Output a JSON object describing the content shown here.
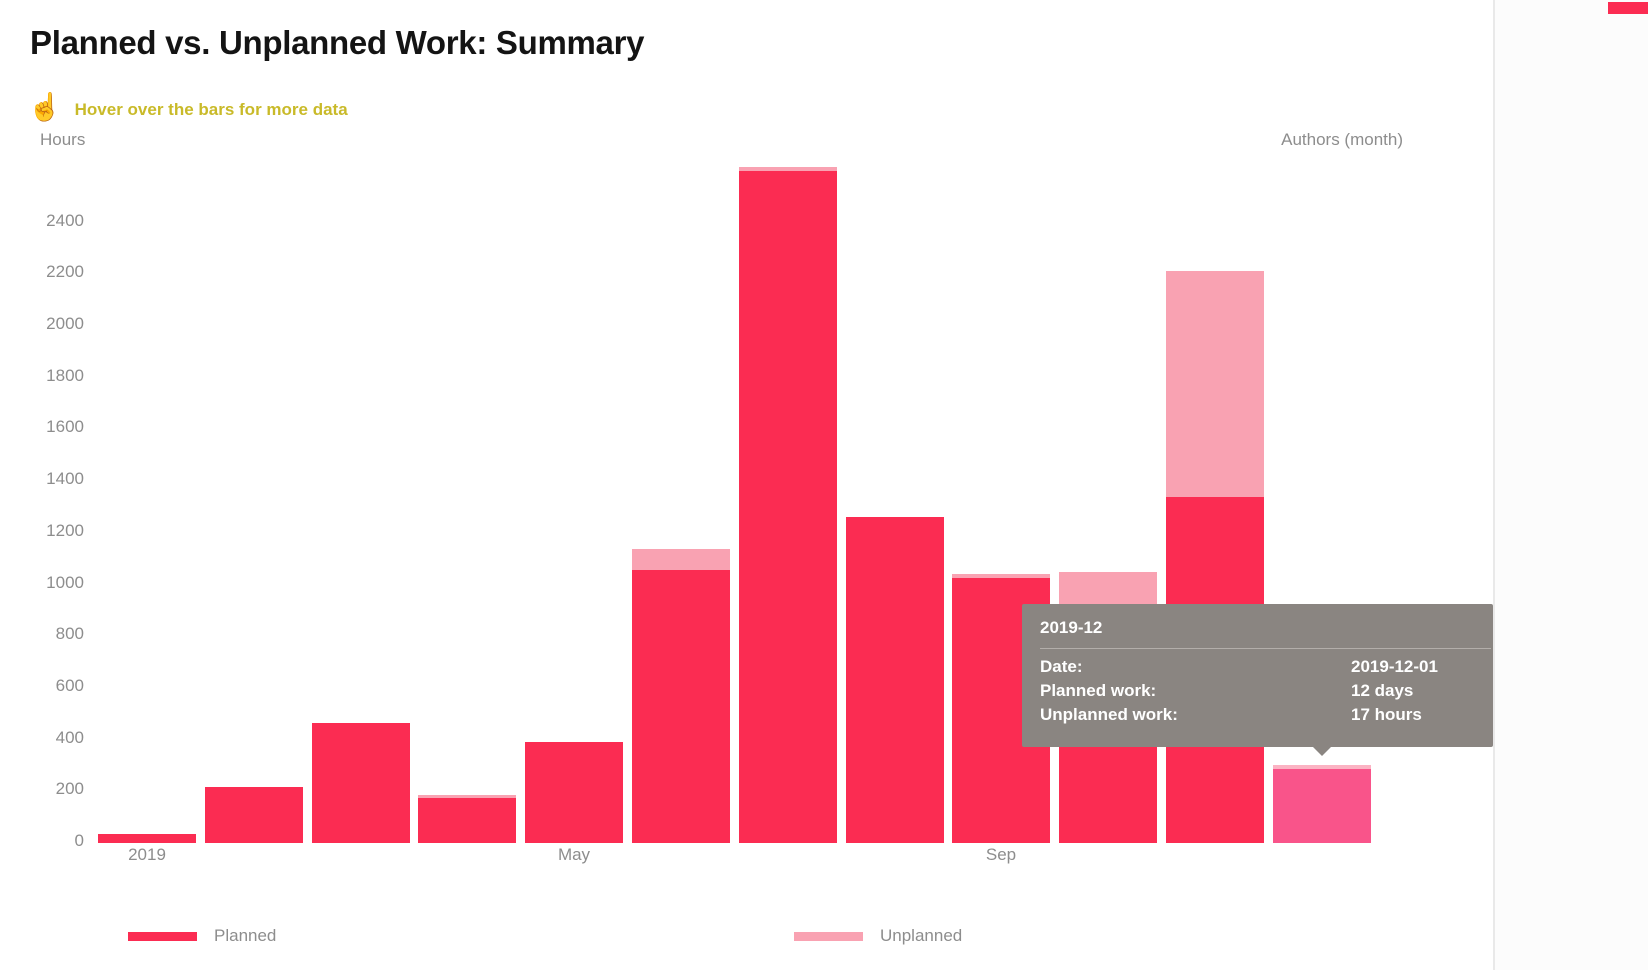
{
  "page": {
    "title": "Planned vs. Unplanned Work: Summary"
  },
  "hint": {
    "icon": "pointing-hand-icon",
    "icon_glyph": "☝",
    "text": "Hover over the bars for more data"
  },
  "axis_titles": {
    "left": "Hours",
    "right": "Authors (month)"
  },
  "legend": [
    {
      "name": "Planned"
    },
    {
      "name": "Unplanned"
    }
  ],
  "tooltip": {
    "title": "2019-12",
    "rows": [
      {
        "label": "Date:",
        "value": "2019-12-01"
      },
      {
        "label": "Planned work:",
        "value": "12 days"
      },
      {
        "label": "Unplanned work:",
        "value": "17 hours"
      }
    ]
  },
  "chart_data": {
    "type": "bar",
    "stacked": true,
    "title": "Planned vs. Unplanned Work: Summary",
    "ylabel": "Hours",
    "xlabel": "Authors (month)",
    "ylim": [
      0,
      2650
    ],
    "grid": false,
    "legend_position": "bottom",
    "y_ticks": [
      0,
      200,
      400,
      600,
      800,
      1000,
      1200,
      1400,
      1600,
      1800,
      2000,
      2200,
      2400
    ],
    "categories": [
      "2019-01",
      "2019-02",
      "2019-03",
      "2019-04",
      "2019-05",
      "2019-06",
      "2019-07",
      "2019-08",
      "2019-09",
      "2019-10",
      "2019-11",
      "2019-12"
    ],
    "x_ticks": [
      {
        "index": 0,
        "label": "2019"
      },
      {
        "index": 4,
        "label": "May"
      },
      {
        "index": 8,
        "label": "Sep"
      }
    ],
    "series": [
      {
        "name": "Planned",
        "values": [
          35,
          215,
          465,
          175,
          390,
          1055,
          2600,
          1260,
          1025,
          750,
          1340,
          288
        ]
      },
      {
        "name": "Unplanned",
        "values": [
          0,
          0,
          0,
          12,
          0,
          80,
          15,
          0,
          15,
          297,
          875,
          17
        ]
      }
    ],
    "highlighted_category": "2019-12",
    "hover_tooltip": {
      "category": "2019-12",
      "date": "2019-12-01",
      "planned_work": "12 days",
      "unplanned_work": "17 hours"
    }
  },
  "theme": {
    "colors": {
      "planned": "#fb2c52",
      "unplanned": "#f9a2b2",
      "planned_highlight": "#f9548a",
      "unplanned_highlight": "#fbb3c3",
      "tooltip_bg": "#8a8581",
      "axis_text": "#8d8d8d",
      "hint_yellow": "#c9ba29",
      "title_text": "#141414"
    }
  }
}
